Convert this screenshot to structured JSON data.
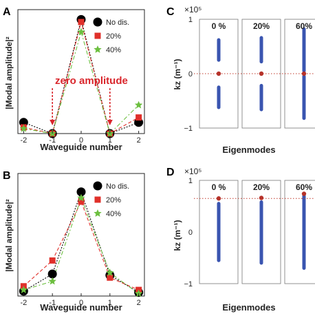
{
  "chart_data": [
    {
      "panel": "A",
      "type": "line",
      "x": [
        -2,
        -1,
        0,
        1,
        2
      ],
      "xlabel": "Waveguide number",
      "ylabel": "|Modal amplitude|²",
      "xlim": [
        -2.2,
        2.2
      ],
      "ylim": [
        0,
        1
      ],
      "xticks": [
        "-2",
        "-1",
        "0",
        "1",
        "2"
      ],
      "series": [
        {
          "name": "No dis.",
          "color": "#000000",
          "marker": "circle",
          "values": [
            0.09,
            0.0,
            0.92,
            0.0,
            0.09
          ]
        },
        {
          "name": "20%",
          "color": "#e0302a",
          "marker": "square",
          "values": [
            0.05,
            0.0,
            0.9,
            0.0,
            0.13
          ]
        },
        {
          "name": "40%",
          "color": "#6cbf3f",
          "marker": "star",
          "values": [
            0.04,
            0.0,
            0.82,
            0.0,
            0.23
          ]
        }
      ],
      "annotation": "zero amplitude",
      "annotation_targets": [
        -1,
        1
      ],
      "legend": "top-right"
    },
    {
      "panel": "B",
      "type": "line",
      "x": [
        -2,
        -1,
        0,
        1,
        2
      ],
      "xlabel": "Waveguide number",
      "ylabel": "|Modal amplitude|²",
      "xlim": [
        -2.2,
        2.2
      ],
      "ylim": [
        0,
        1
      ],
      "xticks": [
        "-2",
        "-1",
        "0",
        "1",
        "2"
      ],
      "series": [
        {
          "name": "No dis.",
          "color": "#000000",
          "marker": "circle",
          "values": [
            0.04,
            0.18,
            0.85,
            0.17,
            0.03
          ]
        },
        {
          "name": "20%",
          "color": "#e0302a",
          "marker": "square",
          "values": [
            0.08,
            0.29,
            0.77,
            0.15,
            0.05
          ]
        },
        {
          "name": "40%",
          "color": "#6cbf3f",
          "marker": "star",
          "values": [
            0.05,
            0.12,
            0.8,
            0.19,
            0.02
          ]
        }
      ],
      "legend": "top-right"
    },
    {
      "panel": "C",
      "type": "scatter",
      "xlabel": "Eigenmodes",
      "ylabel": "kz (m⁻¹)",
      "exponent": "×10⁵",
      "yticks": [
        "1",
        "0",
        "−1"
      ],
      "ylim": [
        -1,
        1
      ],
      "columns": [
        {
          "label": "0 %",
          "bands": [
            [
              0.25,
              0.62
            ],
            [
              -0.62,
              -0.25
            ]
          ],
          "dot": 0
        },
        {
          "label": "20%",
          "bands": [
            [
              0.22,
              0.66
            ],
            [
              -0.66,
              -0.22
            ]
          ],
          "dot": 0
        },
        {
          "label": "60%",
          "bands": [
            [
              0.05,
              0.82
            ],
            [
              -0.82,
              -0.05
            ]
          ],
          "dot": 0
        }
      ]
    },
    {
      "panel": "D",
      "type": "scatter",
      "xlabel": "Eigenmodes",
      "ylabel": "kz (m⁻¹)",
      "exponent": "×10⁵",
      "yticks": [
        "1",
        "0",
        "−1"
      ],
      "ylim": [
        -1,
        1
      ],
      "columns": [
        {
          "label": "0 %",
          "bands": [
            [
              -0.55,
              0.55
            ]
          ],
          "dot": 0.65
        },
        {
          "label": "20%",
          "bands": [
            [
              -0.6,
              0.58
            ]
          ],
          "dot": 0.66
        },
        {
          "label": "60%",
          "bands": [
            [
              -0.7,
              0.7
            ]
          ],
          "dot": 0.74
        }
      ]
    }
  ]
}
